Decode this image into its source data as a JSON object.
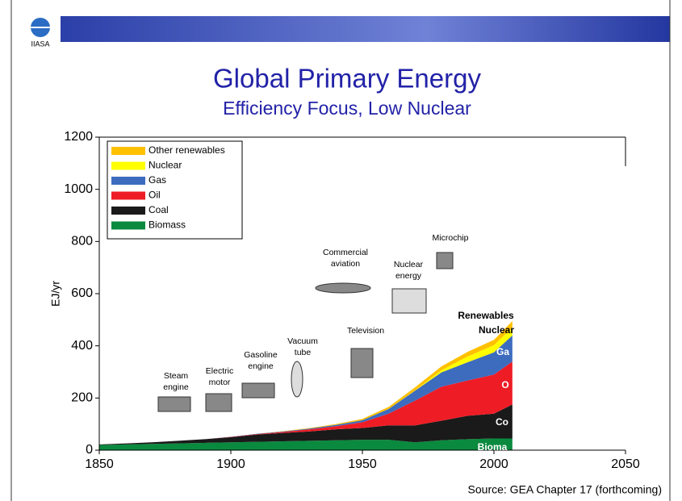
{
  "logo": "IIASA",
  "chart_data": {
    "type": "stacked-area",
    "title": "Global Primary Energy",
    "subtitle": "Efficiency Focus, Low Nuclear",
    "y_label": "EJ/yr",
    "source": "Source: GEA Chapter 17 (forthcoming)",
    "x": [
      1850,
      1860,
      1870,
      1880,
      1890,
      1900,
      1910,
      1920,
      1930,
      1940,
      1950,
      1960,
      1970,
      1980,
      1990,
      2000,
      2007
    ],
    "series": [
      {
        "name": "Biomass",
        "color": "#0a8a3e",
        "values": [
          20,
          22,
          24,
          26,
          28,
          30,
          32,
          34,
          36,
          38,
          40,
          40,
          30,
          38,
          42,
          45,
          45
        ]
      },
      {
        "name": "Coal",
        "color": "#1a1a1a",
        "values": [
          2,
          4,
          6,
          10,
          14,
          20,
          28,
          32,
          36,
          42,
          45,
          55,
          65,
          75,
          90,
          95,
          130
        ]
      },
      {
        "name": "Oil",
        "color": "#ee1c25",
        "values": [
          0,
          0,
          0,
          0,
          0,
          1,
          2,
          4,
          8,
          12,
          22,
          45,
          95,
          130,
          135,
          150,
          165
        ]
      },
      {
        "name": "Gas",
        "color": "#3d6cbf",
        "values": [
          0,
          0,
          0,
          0,
          0,
          0.5,
          1,
          2,
          3,
          5,
          8,
          18,
          38,
          55,
          70,
          85,
          100
        ]
      },
      {
        "name": "Nuclear",
        "color": "#ffff00",
        "values": [
          0,
          0,
          0,
          0,
          0,
          0,
          0,
          0,
          0,
          0,
          0,
          0,
          1,
          8,
          22,
          28,
          30
        ]
      },
      {
        "name": "Other renewables",
        "color": "#ffc000",
        "values": [
          0,
          0,
          0,
          0,
          0,
          0,
          0,
          1,
          2,
          3,
          5,
          8,
          12,
          15,
          18,
          20,
          25
        ]
      }
    ],
    "xlim": [
      1850,
      2050
    ],
    "xticks": [
      1850,
      1900,
      1950,
      2000,
      2050
    ],
    "ylim": [
      0,
      1200
    ],
    "yticks": [
      0,
      200,
      400,
      600,
      800,
      1000,
      1200
    ],
    "legend": "top-left",
    "annotations": [
      "Steam engine",
      "Electric motor",
      "Gasoline engine",
      "Vacuum tube",
      "Television",
      "Commercial aviation",
      "Nuclear energy",
      "Microchip"
    ],
    "area_labels": [
      "Renewables",
      "Nuclear",
      "Ga",
      "O",
      "Co",
      "Bioma"
    ]
  }
}
